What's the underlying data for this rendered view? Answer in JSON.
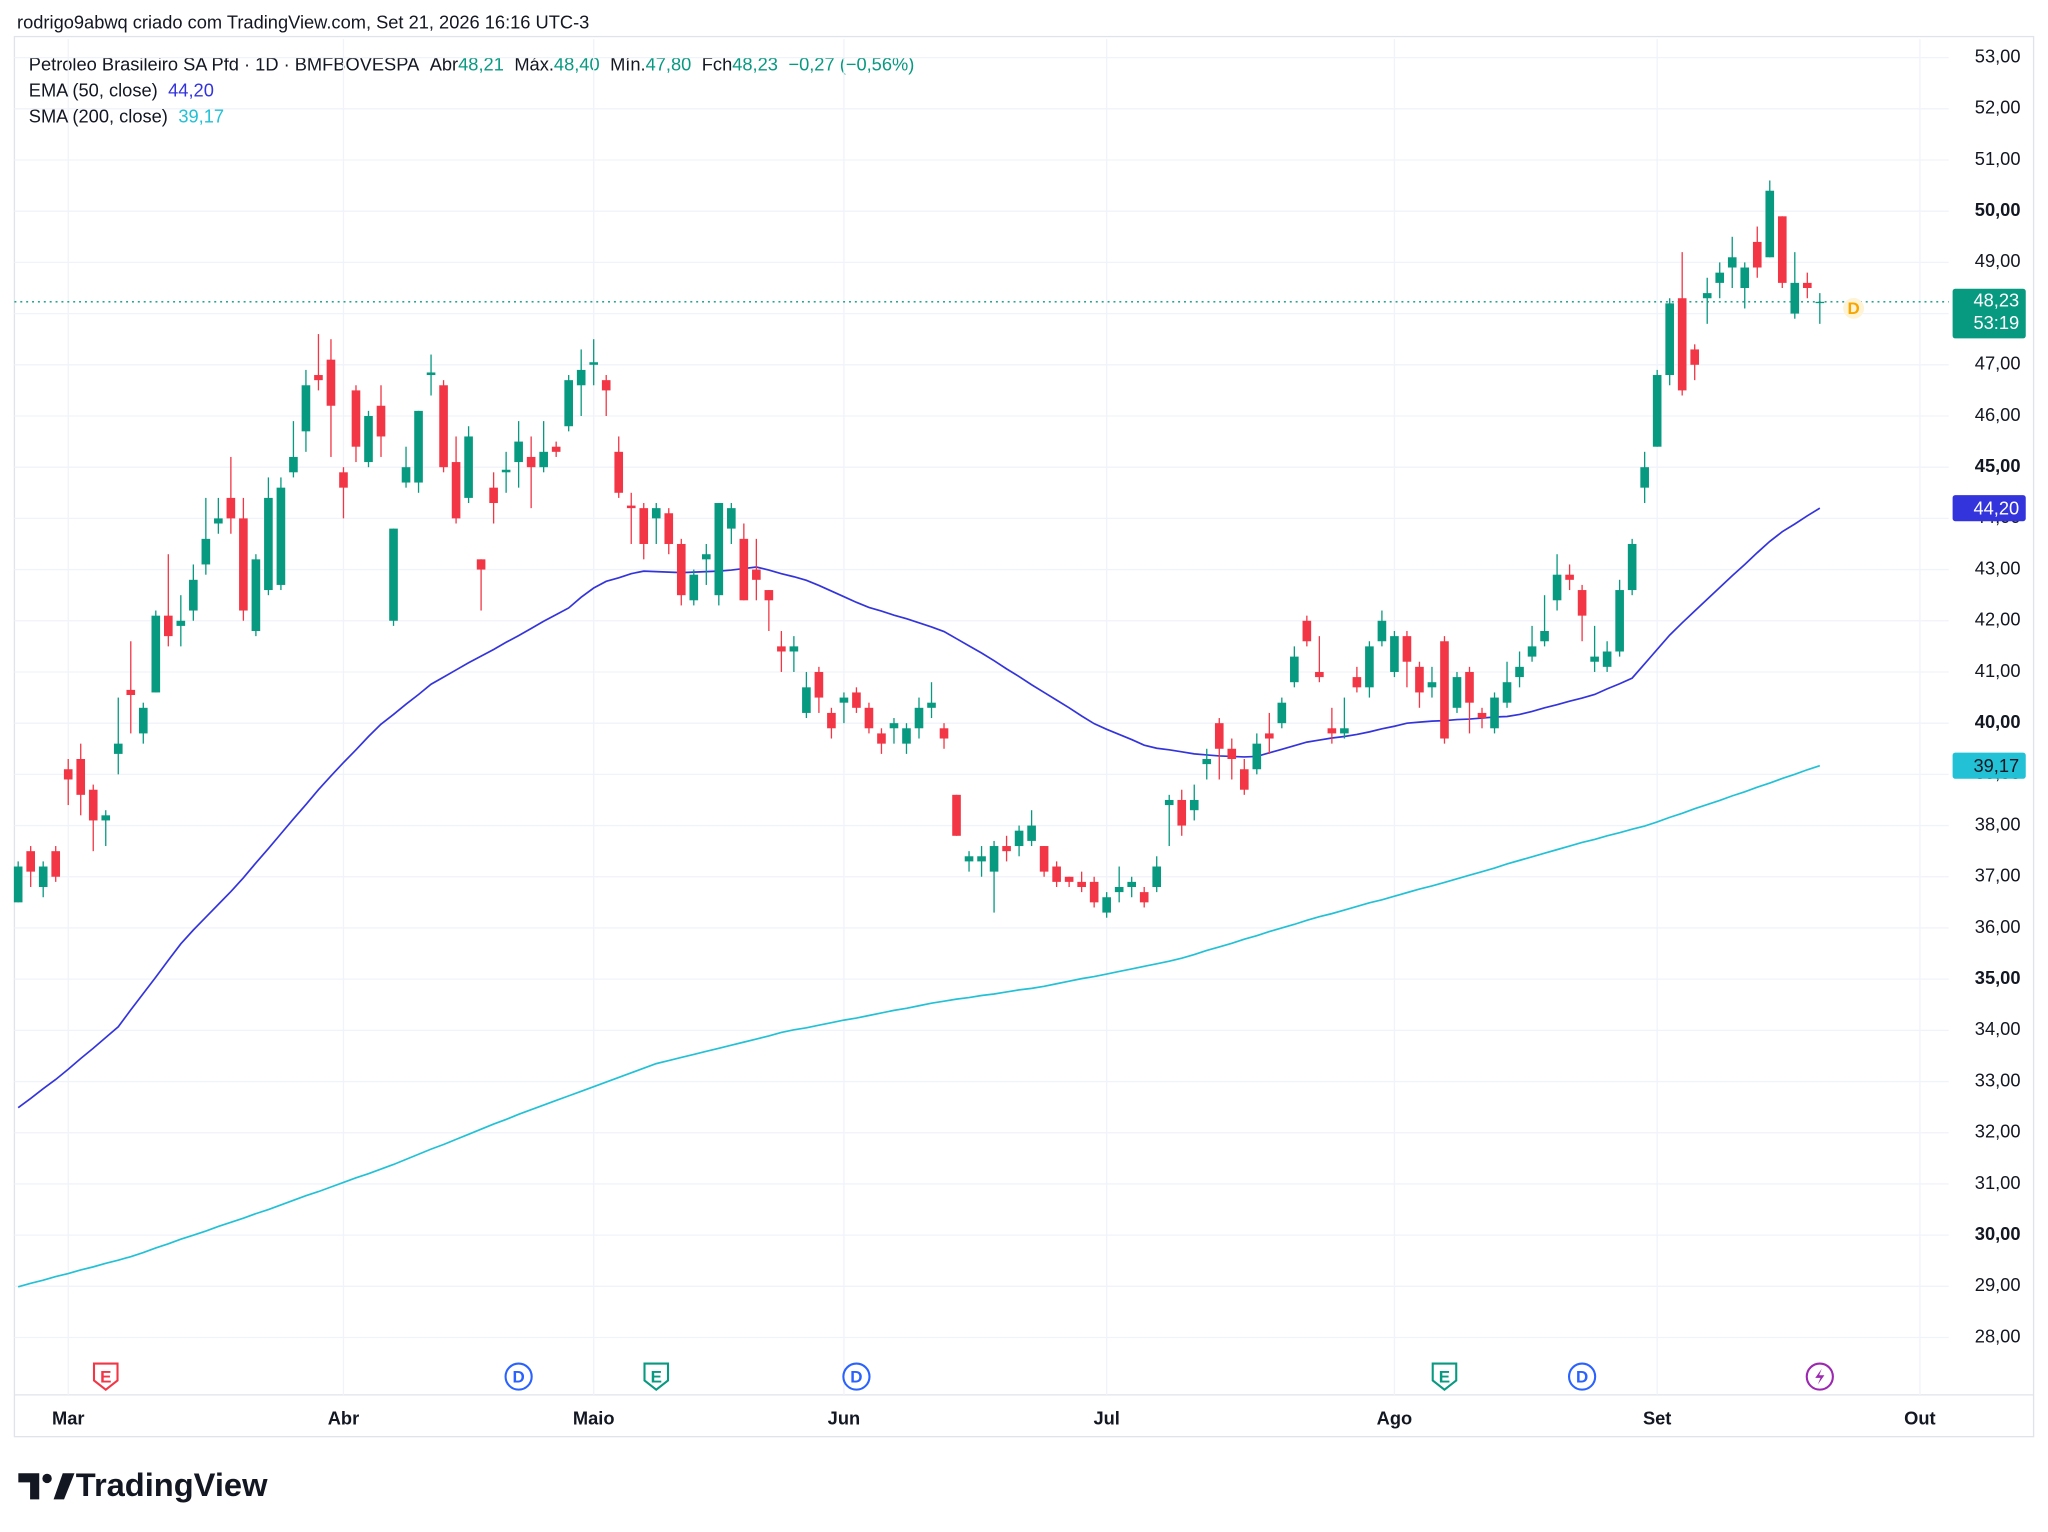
{
  "header": {
    "credit": "rodrigo9abwq criado com TradingView.com, Set 21, 2026 16:16 UTC-3",
    "symbol": "Petroleo Brasileiro SA Pfd · 1D · BMFBOVESPA",
    "ohlc": [
      {
        "key": "Abr",
        "value": "48,21"
      },
      {
        "key": "Máx.",
        "value": "48,40"
      },
      {
        "key": "Mín.",
        "value": "47,80"
      },
      {
        "key": "Fch",
        "value": "48,23"
      }
    ],
    "change": "−0,27 (−0,56%)"
  },
  "footer": {
    "brand": "TradingView"
  },
  "chart_data": {
    "type": "candlestick",
    "up_color": "#089981",
    "down_color": "#f23645",
    "xlim": [
      -0.3,
      154.3
    ],
    "xticks": [
      {
        "value": 4,
        "label": "Mar"
      },
      {
        "value": 26,
        "label": "Abr"
      },
      {
        "value": 46,
        "label": "Maio"
      },
      {
        "value": 66,
        "label": "Jun"
      },
      {
        "value": 87,
        "label": "Jul"
      },
      {
        "value": 110,
        "label": "Ago"
      },
      {
        "value": 131,
        "label": "Set"
      },
      {
        "value": 152,
        "label": "Out"
      }
    ],
    "ylim": [
      26.88,
      53.36
    ],
    "yticks": [
      {
        "value": 28,
        "label": "28,00"
      },
      {
        "value": 29,
        "label": "29,00"
      },
      {
        "value": 30,
        "label": "30,00"
      },
      {
        "value": 31,
        "label": "31,00"
      },
      {
        "value": 32,
        "label": "32,00"
      },
      {
        "value": 33,
        "label": "33,00"
      },
      {
        "value": 34,
        "label": "34,00"
      },
      {
        "value": 35,
        "label": "35,00"
      },
      {
        "value": 36,
        "label": "36,00"
      },
      {
        "value": 37,
        "label": "37,00"
      },
      {
        "value": 38,
        "label": "38,00"
      },
      {
        "value": 39,
        "label": "39,00"
      },
      {
        "value": 40,
        "label": "40,00"
      },
      {
        "value": 41,
        "label": "41,00"
      },
      {
        "value": 42,
        "label": "42,00"
      },
      {
        "value": 43,
        "label": "43,00"
      },
      {
        "value": 44,
        "label": "44,00"
      },
      {
        "value": 45,
        "label": "45,00"
      },
      {
        "value": 46,
        "label": "46,00"
      },
      {
        "value": 47,
        "label": "47,00"
      },
      {
        "value": 48,
        "label": "48,00"
      },
      {
        "value": 49,
        "label": "49,00"
      },
      {
        "value": 50,
        "label": "50,00"
      },
      {
        "value": 51,
        "label": "51,00"
      },
      {
        "value": 52,
        "label": "52,00"
      },
      {
        "value": 53,
        "label": "53,00"
      }
    ],
    "grid": true,
    "open": [
      36.5,
      37.5,
      36.8,
      37.5,
      39.1,
      39.3,
      38.7,
      38.1,
      39.4,
      40.65,
      39.8,
      40.6,
      42.1,
      41.9,
      42.2,
      43.1,
      43.9,
      44.4,
      44.0,
      41.8,
      42.6,
      42.7,
      44.9,
      45.7,
      46.8,
      47.1,
      44.9,
      46.5,
      45.1,
      46.2,
      42.0,
      44.7,
      44.7,
      46.8,
      46.6,
      45.1,
      44.4,
      43.2,
      44.6,
      44.9,
      45.1,
      45.2,
      45.0,
      45.4,
      45.8,
      46.6,
      47.0,
      46.7,
      45.3,
      44.25,
      44.2,
      44.0,
      44.1,
      43.5,
      42.4,
      43.2,
      42.5,
      43.8,
      43.6,
      43.0,
      42.6,
      41.5,
      41.4,
      40.2,
      41.0,
      40.2,
      40.4,
      40.6,
      40.3,
      39.8,
      39.9,
      39.6,
      39.9,
      40.3,
      39.9,
      38.6,
      37.3,
      37.3,
      37.1,
      37.6,
      37.6,
      37.7,
      37.6,
      37.2,
      37.0,
      36.9,
      36.9,
      36.3,
      36.7,
      36.8,
      36.7,
      36.8,
      38.4,
      38.5,
      38.3,
      39.2,
      40.0,
      39.5,
      39.1,
      39.1,
      39.8,
      40.0,
      40.8,
      42.0,
      41.0,
      39.9,
      39.8,
      40.9,
      40.7,
      41.6,
      41.0,
      41.7,
      41.1,
      40.7,
      41.6,
      40.3,
      41.0,
      40.2,
      39.9,
      40.4,
      40.9,
      41.3,
      41.6,
      42.4,
      42.9,
      42.6,
      41.2,
      41.1,
      41.4,
      42.6,
      44.6,
      45.4,
      46.8,
      48.3,
      47.3,
      48.3,
      48.6,
      48.9,
      48.5,
      49.4,
      49.1,
      49.9,
      48.0,
      48.6,
      48.21
    ],
    "high": [
      37.3,
      37.6,
      37.3,
      37.6,
      39.3,
      39.6,
      38.8,
      38.3,
      40.5,
      41.6,
      40.4,
      42.2,
      43.3,
      42.5,
      43.1,
      44.4,
      44.4,
      45.2,
      44.4,
      43.3,
      44.8,
      44.8,
      45.9,
      46.9,
      47.6,
      47.5,
      45.0,
      46.6,
      46.1,
      46.6,
      43.8,
      45.4,
      46.1,
      47.2,
      46.7,
      45.6,
      45.8,
      43.2,
      44.9,
      45.3,
      45.9,
      45.6,
      45.9,
      45.5,
      46.8,
      47.3,
      47.5,
      46.8,
      45.6,
      44.5,
      44.3,
      44.3,
      44.2,
      43.6,
      43.0,
      43.5,
      44.3,
      44.3,
      43.9,
      43.6,
      42.6,
      41.8,
      41.7,
      41.0,
      41.1,
      40.3,
      40.6,
      40.7,
      40.4,
      39.9,
      40.1,
      40.0,
      40.5,
      40.8,
      40.0,
      38.6,
      37.5,
      37.6,
      37.7,
      37.8,
      38.0,
      38.3,
      37.6,
      37.3,
      37.0,
      37.1,
      37.0,
      36.7,
      37.2,
      37.0,
      36.8,
      37.4,
      38.6,
      38.7,
      38.8,
      39.5,
      40.1,
      39.7,
      39.3,
      39.8,
      40.2,
      40.5,
      41.5,
      42.1,
      41.7,
      40.3,
      40.5,
      41.1,
      41.6,
      42.2,
      41.8,
      41.8,
      41.2,
      41.1,
      41.7,
      41.0,
      41.1,
      40.3,
      40.6,
      41.2,
      41.4,
      41.9,
      42.5,
      43.3,
      43.1,
      42.7,
      41.9,
      41.6,
      42.8,
      43.6,
      45.3,
      46.9,
      48.3,
      49.2,
      47.4,
      48.7,
      49.0,
      49.5,
      49.0,
      49.7,
      50.6,
      49.9,
      49.2,
      48.8,
      48.4
    ],
    "low": [
      36.5,
      36.8,
      36.6,
      36.9,
      38.4,
      38.2,
      37.5,
      37.6,
      39.0,
      39.8,
      39.6,
      40.6,
      41.5,
      41.5,
      42.0,
      42.9,
      43.7,
      43.7,
      42.0,
      41.7,
      42.5,
      42.6,
      44.8,
      45.3,
      46.5,
      45.2,
      44.0,
      45.1,
      45.0,
      45.2,
      41.9,
      44.6,
      44.5,
      46.4,
      44.9,
      43.9,
      44.3,
      42.2,
      43.9,
      44.5,
      44.6,
      44.2,
      44.9,
      45.2,
      45.7,
      46.0,
      46.6,
      46.0,
      44.4,
      43.5,
      43.2,
      43.5,
      43.3,
      42.3,
      42.3,
      42.7,
      42.3,
      43.5,
      42.4,
      42.4,
      41.8,
      41.0,
      41.0,
      40.1,
      40.2,
      39.7,
      40.0,
      40.2,
      39.8,
      39.4,
      39.6,
      39.4,
      39.7,
      40.1,
      39.5,
      37.8,
      37.1,
      37.0,
      36.3,
      37.3,
      37.4,
      37.6,
      37.0,
      36.8,
      36.8,
      36.7,
      36.4,
      36.2,
      36.5,
      36.6,
      36.4,
      36.7,
      37.6,
      37.8,
      38.1,
      38.9,
      38.9,
      38.9,
      38.6,
      39.0,
      39.4,
      39.9,
      40.7,
      41.5,
      40.8,
      39.6,
      39.7,
      40.6,
      40.5,
      41.5,
      40.9,
      40.7,
      40.3,
      40.5,
      39.6,
      40.2,
      39.8,
      39.9,
      39.8,
      40.3,
      40.7,
      41.2,
      41.5,
      42.2,
      42.6,
      41.6,
      41.0,
      41.0,
      41.3,
      42.5,
      44.3,
      45.4,
      46.6,
      46.4,
      46.7,
      47.8,
      48.3,
      48.5,
      48.1,
      48.7,
      49.1,
      48.5,
      47.9,
      48.3,
      47.8
    ],
    "close": [
      37.2,
      37.1,
      37.2,
      37.0,
      38.9,
      38.6,
      38.1,
      38.2,
      39.6,
      40.55,
      40.3,
      42.1,
      41.7,
      42.0,
      42.8,
      43.6,
      44.0,
      44.0,
      42.2,
      43.2,
      44.4,
      44.6,
      45.2,
      46.6,
      46.7,
      46.2,
      44.6,
      45.4,
      46.0,
      45.6,
      43.8,
      45.0,
      46.1,
      46.85,
      45.0,
      44.0,
      45.6,
      43.0,
      44.3,
      44.95,
      45.5,
      45.0,
      45.3,
      45.3,
      46.7,
      46.9,
      47.05,
      46.5,
      44.5,
      44.2,
      43.5,
      44.2,
      43.5,
      42.5,
      42.9,
      43.3,
      44.3,
      44.2,
      42.4,
      42.8,
      42.4,
      41.4,
      41.5,
      40.7,
      40.5,
      39.9,
      40.5,
      40.3,
      39.9,
      39.6,
      40.0,
      39.9,
      40.3,
      40.4,
      39.7,
      37.8,
      37.4,
      37.4,
      37.6,
      37.5,
      37.9,
      38.0,
      37.1,
      36.9,
      36.9,
      36.8,
      36.5,
      36.6,
      36.8,
      36.9,
      36.5,
      37.2,
      38.5,
      38.0,
      38.5,
      39.3,
      39.5,
      39.3,
      38.7,
      39.6,
      39.7,
      40.4,
      41.3,
      41.6,
      40.9,
      39.8,
      39.9,
      40.7,
      41.5,
      42.0,
      41.7,
      41.2,
      40.6,
      40.8,
      39.7,
      40.9,
      40.4,
      40.1,
      40.5,
      40.8,
      41.1,
      41.5,
      41.8,
      42.9,
      42.8,
      42.1,
      41.3,
      41.4,
      42.6,
      43.5,
      45.0,
      46.8,
      48.2,
      46.5,
      47.0,
      48.4,
      48.8,
      49.1,
      48.9,
      48.9,
      50.4,
      48.6,
      48.6,
      48.5,
      48.23
    ],
    "price_line": {
      "value": 48.23,
      "label": "48,23",
      "countdown": "53:19",
      "color": "#089981"
    },
    "indicators": [
      {
        "name": "EMA (50, close)",
        "color": "#3434dc",
        "last_label": "44,20",
        "label_text_color": "#ffffff",
        "values": [
          32.49,
          32.67,
          32.86,
          33.04,
          33.24,
          33.45,
          33.65,
          33.86,
          34.07,
          34.4,
          34.72,
          35.04,
          35.37,
          35.69,
          35.96,
          36.21,
          36.46,
          36.71,
          36.98,
          37.27,
          37.55,
          37.84,
          38.13,
          38.41,
          38.7,
          38.97,
          39.23,
          39.48,
          39.74,
          39.98,
          40.17,
          40.37,
          40.56,
          40.76,
          40.9,
          41.04,
          41.18,
          41.31,
          41.44,
          41.58,
          41.71,
          41.85,
          41.99,
          42.12,
          42.25,
          42.46,
          42.64,
          42.77,
          42.84,
          42.92,
          42.97,
          42.96,
          42.95,
          42.94,
          42.95,
          42.96,
          42.97,
          42.99,
          43.02,
          43.05,
          42.99,
          42.92,
          42.86,
          42.79,
          42.69,
          42.58,
          42.47,
          42.36,
          42.26,
          42.19,
          42.11,
          42.04,
          41.96,
          41.88,
          41.79,
          41.65,
          41.51,
          41.37,
          41.22,
          41.06,
          40.91,
          40.75,
          40.6,
          40.45,
          40.3,
          40.14,
          39.99,
          39.88,
          39.78,
          39.68,
          39.57,
          39.51,
          39.48,
          39.44,
          39.4,
          39.38,
          39.36,
          39.35,
          39.34,
          39.35,
          39.42,
          39.49,
          39.56,
          39.63,
          39.67,
          39.71,
          39.74,
          39.78,
          39.83,
          39.89,
          39.94,
          40.0,
          40.02,
          40.04,
          40.05,
          40.07,
          40.08,
          40.1,
          40.12,
          40.13,
          40.17,
          40.23,
          40.3,
          40.36,
          40.43,
          40.49,
          40.56,
          40.67,
          40.77,
          40.88,
          41.16,
          41.44,
          41.72,
          41.96,
          42.19,
          42.42,
          42.65,
          42.88,
          43.1,
          43.33,
          43.55,
          43.74,
          43.89,
          44.05,
          44.2
        ]
      },
      {
        "name": "SMA (200, close)",
        "color": "#22c1d6",
        "last_label": "39,17",
        "label_text_color": "#131722",
        "values": [
          28.99,
          29.06,
          29.12,
          29.19,
          29.25,
          29.32,
          29.38,
          29.45,
          29.51,
          29.58,
          29.66,
          29.75,
          29.83,
          29.92,
          30.0,
          30.08,
          30.17,
          30.25,
          30.33,
          30.42,
          30.5,
          30.59,
          30.68,
          30.77,
          30.85,
          30.94,
          31.03,
          31.12,
          31.2,
          31.29,
          31.38,
          31.48,
          31.58,
          31.68,
          31.77,
          31.87,
          31.97,
          32.07,
          32.17,
          32.26,
          32.36,
          32.45,
          32.54,
          32.63,
          32.72,
          32.81,
          32.9,
          32.99,
          33.08,
          33.17,
          33.26,
          33.35,
          33.41,
          33.47,
          33.53,
          33.59,
          33.65,
          33.71,
          33.77,
          33.83,
          33.89,
          33.96,
          34.01,
          34.05,
          34.1,
          34.15,
          34.2,
          34.24,
          34.29,
          34.34,
          34.39,
          34.43,
          34.48,
          34.53,
          34.57,
          34.61,
          34.64,
          34.68,
          34.71,
          34.75,
          34.79,
          34.82,
          34.86,
          34.91,
          34.96,
          35.01,
          35.05,
          35.1,
          35.15,
          35.2,
          35.25,
          35.3,
          35.35,
          35.41,
          35.48,
          35.56,
          35.63,
          35.7,
          35.78,
          35.85,
          35.93,
          36.0,
          36.07,
          36.15,
          36.22,
          36.28,
          36.35,
          36.42,
          36.49,
          36.55,
          36.62,
          36.69,
          36.76,
          36.82,
          36.89,
          36.96,
          37.03,
          37.1,
          37.17,
          37.25,
          37.32,
          37.39,
          37.46,
          37.53,
          37.6,
          37.67,
          37.73,
          37.8,
          37.86,
          37.93,
          37.99,
          38.07,
          38.16,
          38.24,
          38.33,
          38.41,
          38.49,
          38.58,
          38.66,
          38.75,
          38.83,
          38.92,
          39.0,
          39.09,
          39.17
        ]
      }
    ],
    "events": [
      {
        "x": 7,
        "label": "E",
        "color": "#f23645",
        "shape": "shield"
      },
      {
        "x": 40,
        "label": "D",
        "color": "#2962ff",
        "shape": "circle"
      },
      {
        "x": 51,
        "label": "E",
        "color": "#089981",
        "shape": "shield"
      },
      {
        "x": 67,
        "label": "D",
        "color": "#2962ff",
        "shape": "circle"
      },
      {
        "x": 114,
        "label": "E",
        "color": "#089981",
        "shape": "shield"
      },
      {
        "x": 125,
        "label": "D",
        "color": "#2962ff",
        "shape": "circle"
      },
      {
        "x": 144,
        "color": "#9c27b0",
        "shape": "bolt"
      }
    ],
    "future_marker": {
      "x": 146.7,
      "label": "D",
      "color": "#f7a600"
    }
  }
}
